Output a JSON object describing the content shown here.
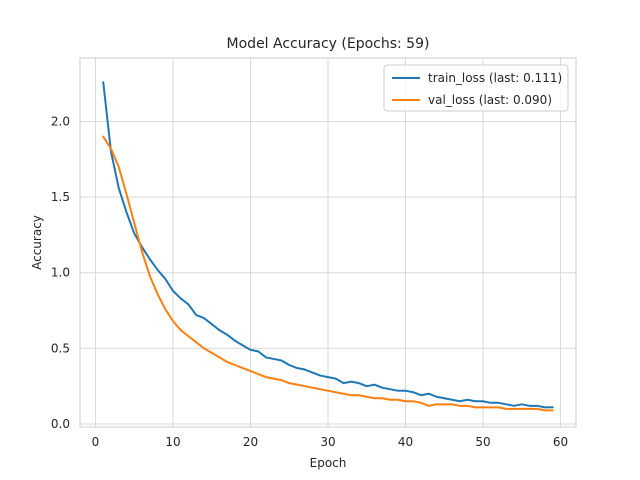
{
  "chart_data": {
    "type": "line",
    "title": "Model Accuracy (Epochs: 59)",
    "xlabel": "Epoch",
    "ylabel": "Accuracy",
    "xlim": [
      -2,
      62
    ],
    "ylim": [
      -0.02,
      2.42
    ],
    "xticks": [
      0,
      10,
      20,
      30,
      40,
      50,
      60
    ],
    "yticks": [
      0.0,
      0.5,
      1.0,
      1.5,
      2.0
    ],
    "grid": true,
    "legend_position": "top-right",
    "series": [
      {
        "name": "train_loss (last: 0.111)",
        "color": "#1f77b4",
        "x": [
          1,
          2,
          3,
          4,
          5,
          6,
          7,
          8,
          9,
          10,
          11,
          12,
          13,
          14,
          15,
          16,
          17,
          18,
          19,
          20,
          21,
          22,
          23,
          24,
          25,
          26,
          27,
          28,
          29,
          30,
          31,
          32,
          33,
          34,
          35,
          36,
          37,
          38,
          39,
          40,
          41,
          42,
          43,
          44,
          45,
          46,
          47,
          48,
          49,
          50,
          51,
          52,
          53,
          54,
          55,
          56,
          57,
          58,
          59
        ],
        "y": [
          2.26,
          1.8,
          1.56,
          1.4,
          1.26,
          1.17,
          1.09,
          1.02,
          0.96,
          0.88,
          0.83,
          0.79,
          0.72,
          0.7,
          0.66,
          0.62,
          0.59,
          0.55,
          0.52,
          0.49,
          0.48,
          0.44,
          0.43,
          0.42,
          0.39,
          0.37,
          0.36,
          0.34,
          0.32,
          0.31,
          0.3,
          0.27,
          0.28,
          0.27,
          0.25,
          0.26,
          0.24,
          0.23,
          0.22,
          0.22,
          0.21,
          0.19,
          0.2,
          0.18,
          0.17,
          0.16,
          0.15,
          0.16,
          0.15,
          0.15,
          0.14,
          0.14,
          0.13,
          0.12,
          0.13,
          0.12,
          0.12,
          0.11,
          0.111
        ]
      },
      {
        "name": "val_loss (last: 0.090)",
        "color": "#ff7f0e",
        "x": [
          1,
          2,
          3,
          4,
          5,
          6,
          7,
          8,
          9,
          10,
          11,
          12,
          13,
          14,
          15,
          16,
          17,
          18,
          19,
          20,
          21,
          22,
          23,
          24,
          25,
          26,
          27,
          28,
          29,
          30,
          31,
          32,
          33,
          34,
          35,
          36,
          37,
          38,
          39,
          40,
          41,
          42,
          43,
          44,
          45,
          46,
          47,
          48,
          49,
          50,
          51,
          52,
          53,
          54,
          55,
          56,
          57,
          58,
          59
        ],
        "y": [
          1.9,
          1.82,
          1.7,
          1.52,
          1.33,
          1.14,
          0.98,
          0.86,
          0.76,
          0.68,
          0.62,
          0.58,
          0.54,
          0.5,
          0.47,
          0.44,
          0.41,
          0.39,
          0.37,
          0.35,
          0.33,
          0.31,
          0.3,
          0.29,
          0.27,
          0.26,
          0.25,
          0.24,
          0.23,
          0.22,
          0.21,
          0.2,
          0.19,
          0.19,
          0.18,
          0.17,
          0.17,
          0.16,
          0.16,
          0.15,
          0.15,
          0.14,
          0.12,
          0.13,
          0.13,
          0.13,
          0.12,
          0.12,
          0.11,
          0.11,
          0.11,
          0.11,
          0.1,
          0.1,
          0.1,
          0.1,
          0.1,
          0.09,
          0.09
        ]
      }
    ]
  }
}
